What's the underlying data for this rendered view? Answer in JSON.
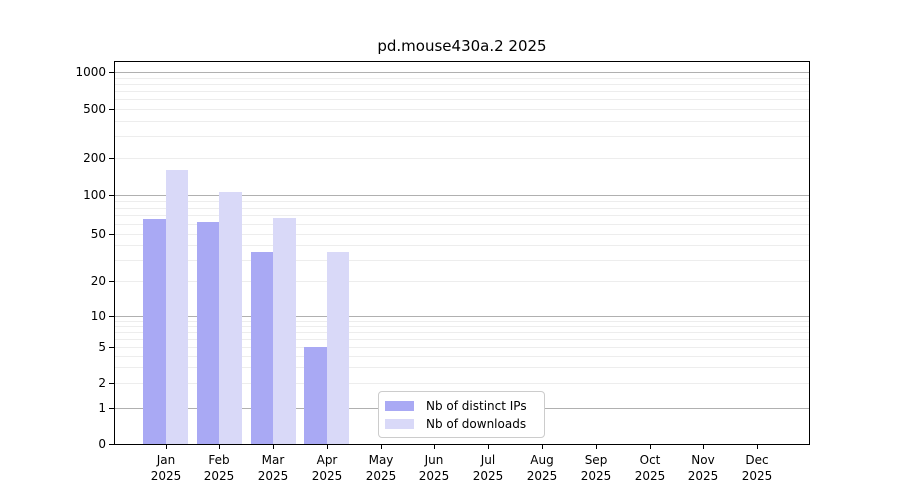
{
  "title": "pd.mouse430a.2 2025",
  "chart_data": {
    "type": "bar",
    "title": "pd.mouse430a.2 2025",
    "xlabel": "",
    "ylabel": "",
    "x_months": [
      "Jan",
      "Feb",
      "Mar",
      "Apr",
      "May",
      "Jun",
      "Jul",
      "Aug",
      "Sep",
      "Oct",
      "Nov",
      "Dec"
    ],
    "x_year": "2025",
    "series": [
      {
        "name": "Nb of distinct IPs",
        "color": "#a9a9f4",
        "values": [
          65,
          62,
          35,
          5,
          0,
          0,
          0,
          0,
          0,
          0,
          0,
          0
        ]
      },
      {
        "name": "Nb of downloads",
        "color": "#d9d9f8",
        "values": [
          160,
          105,
          67,
          35,
          0,
          0,
          0,
          0,
          0,
          0,
          0,
          0
        ]
      }
    ],
    "yticks": [
      0,
      1,
      2,
      5,
      10,
      20,
      50,
      100,
      200,
      500,
      1000
    ],
    "scale": "log-like (0 at baseline)",
    "ylim": [
      0,
      1400
    ],
    "grid": true,
    "major_gridlines": [
      1,
      10,
      100,
      1000
    ],
    "minor_gridlines": [
      2,
      3,
      4,
      5,
      6,
      7,
      8,
      9,
      20,
      30,
      40,
      50,
      60,
      70,
      80,
      90,
      200,
      300,
      400,
      500,
      600,
      700,
      800,
      900
    ],
    "legend_position": "inside lower-center-left"
  },
  "colors": {
    "bar_distinct_ips": "#a9a9f4",
    "bar_downloads": "#d9d9f8",
    "grid_major": "#b0b0b0",
    "grid_minor": "#ededed",
    "axis": "#000000",
    "legend_border": "#cccccc",
    "background": "#ffffff"
  }
}
